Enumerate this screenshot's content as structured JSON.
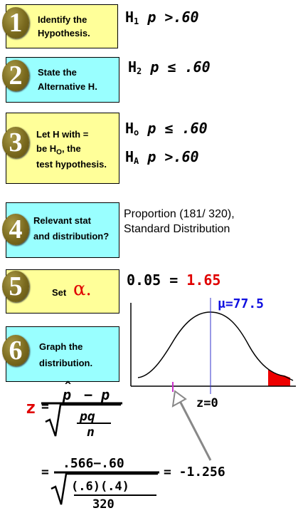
{
  "steps": [
    {
      "num": "1",
      "lines": [
        "Identify the",
        "Hypothesis."
      ]
    },
    {
      "num": "2",
      "lines": [
        "State the",
        "Alternative H."
      ]
    },
    {
      "num": "3",
      "lines": [
        "Let H with =",
        "be H",
        "O",
        ", the",
        "test hypothesis."
      ]
    },
    {
      "num": "4",
      "lines": [
        "Relevant stat",
        "and distribution?"
      ]
    },
    {
      "num": "5",
      "text": "Set",
      "symbol": "α."
    },
    {
      "num": "6",
      "lines": [
        "Graph the",
        "distribution."
      ]
    }
  ],
  "hypotheses": {
    "h1": {
      "letter": "H",
      "sub": "1",
      "expr": "p >.60"
    },
    "h2": {
      "letter": "H",
      "sub": "2",
      "expr": "p ≤ .60"
    },
    "ho": {
      "letter": "H",
      "sub": "o",
      "expr": "p ≤ .60"
    },
    "ha": {
      "letter": "H",
      "sub": "A",
      "expr": "p >.60"
    }
  },
  "stat": {
    "line1": "Proportion (181/ 320),",
    "line2": "Standard Distribution"
  },
  "alpha": {
    "level": "0.05 =",
    "critical": "1.65"
  },
  "graph": {
    "mu_label": "μ=77.5",
    "z_label": "z=0"
  },
  "formula": {
    "z": "z",
    "eq": "=",
    "p_hat": "p",
    "hat": "^",
    "minus_p": "− p",
    "pq": "pq",
    "n": "n",
    "eq2": "=",
    "num2": ".566−.60",
    "pq_vals": "(.6)(.4)",
    "n_val": "320",
    "result": "= -1.256"
  },
  "colors": {
    "yellow": "#ffff99",
    "cyan": "#99ffff",
    "red": "#e00000",
    "blue": "#1010e0"
  }
}
